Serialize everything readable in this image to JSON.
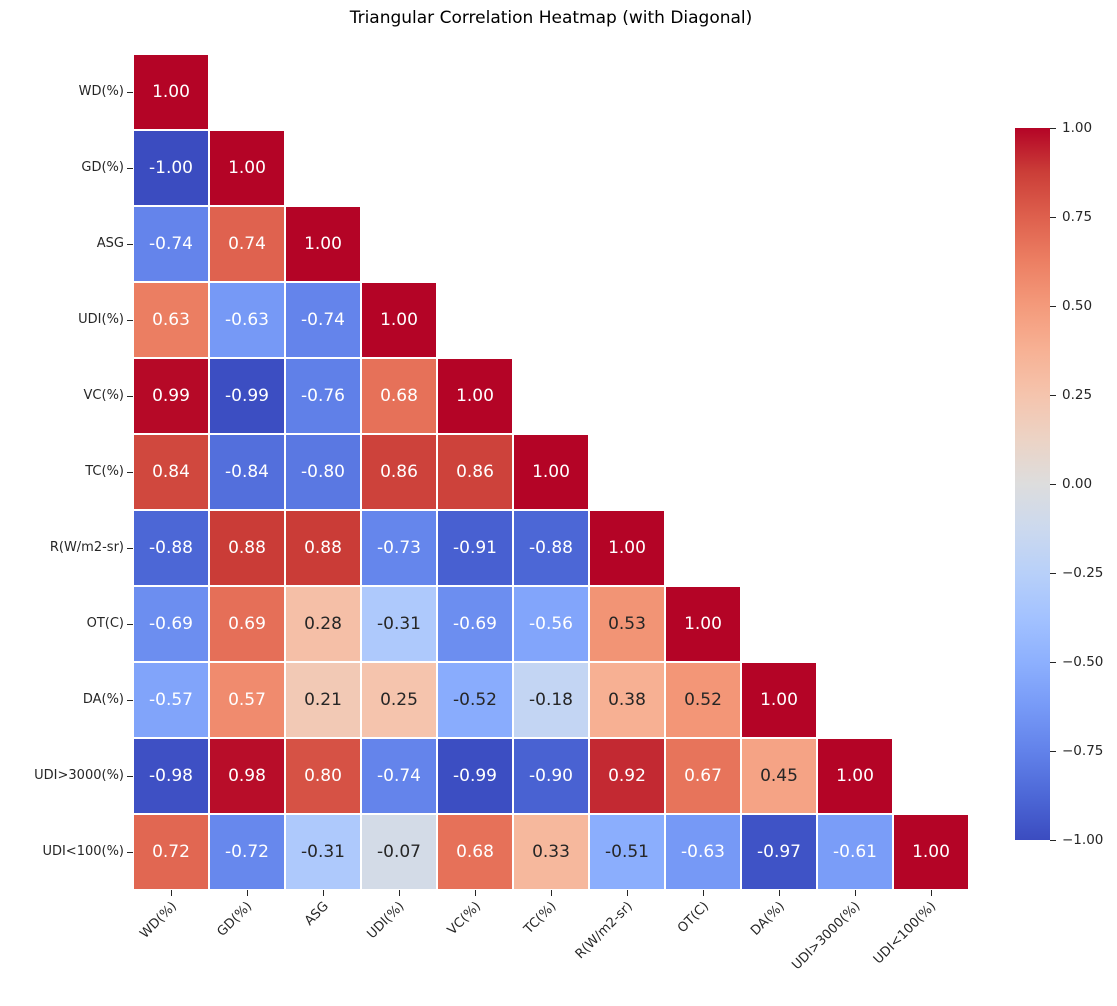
{
  "title": "Triangular Correlation Heatmap (with Diagonal)",
  "chart_data": {
    "type": "heatmap",
    "shape": "lower-triangle-with-diagonal",
    "title": "Triangular Correlation Heatmap (with Diagonal)",
    "colormap": "coolwarm",
    "vmin": -1.0,
    "vmax": 1.0,
    "annotation_format": "0.00",
    "categories": [
      "WD(%)",
      "GD(%)",
      "ASG",
      "UDI(%)",
      "VC(%)",
      "TC(%)",
      "R(W/m2-sr)",
      "OT(C)",
      "DA(%)",
      "UDI>3000(%)",
      "UDI<100(%)"
    ],
    "matrix": [
      [
        1.0
      ],
      [
        -1.0,
        1.0
      ],
      [
        -0.74,
        0.74,
        1.0
      ],
      [
        0.63,
        -0.63,
        -0.74,
        1.0
      ],
      [
        0.99,
        -0.99,
        -0.76,
        0.68,
        1.0
      ],
      [
        0.84,
        -0.84,
        -0.8,
        0.86,
        0.86,
        1.0
      ],
      [
        -0.88,
        0.88,
        0.88,
        -0.73,
        -0.91,
        -0.88,
        1.0
      ],
      [
        -0.69,
        0.69,
        0.28,
        -0.31,
        -0.69,
        -0.56,
        0.53,
        1.0
      ],
      [
        -0.57,
        0.57,
        0.21,
        0.25,
        -0.52,
        -0.18,
        0.38,
        0.52,
        1.0
      ],
      [
        -0.98,
        0.98,
        0.8,
        -0.74,
        -0.99,
        -0.9,
        0.92,
        0.67,
        0.45,
        1.0
      ],
      [
        0.72,
        -0.72,
        -0.31,
        -0.07,
        0.68,
        0.33,
        -0.51,
        -0.63,
        -0.97,
        -0.61,
        1.0
      ]
    ],
    "colorbar": {
      "tick_labels": [
        "1.00",
        "0.75",
        "0.50",
        "0.25",
        "0.00",
        "−0.25",
        "−0.50",
        "−0.75",
        "−1.00"
      ],
      "tick_values": [
        1.0,
        0.75,
        0.5,
        0.25,
        0.0,
        -0.25,
        -0.5,
        -0.75,
        -1.0
      ],
      "position": "right"
    },
    "colors": {
      "max_red": "#b40426",
      "midpoint": "#dddddd",
      "min_blue": "#3b4cc0",
      "annot_dark": "#262626",
      "annot_light": "#ffffff",
      "gridline": "#ffffff",
      "background": "#ffffff"
    },
    "legend": "none",
    "grid": "white 2px cell separators"
  }
}
